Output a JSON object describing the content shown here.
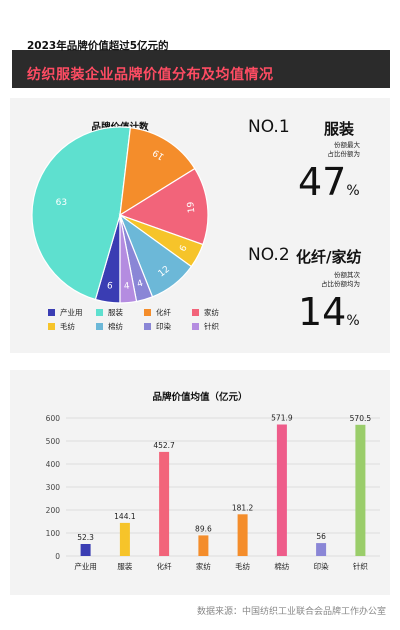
{
  "header": {
    "subtitle": "2023年品牌价值超过5亿元的",
    "title": "纺织服装企业品牌价值分布及均值情况"
  },
  "stats": [
    {
      "rank": "NO.1",
      "category": "服装",
      "note_line1": "份额最大",
      "note_line2": "占比份额为",
      "value": "47",
      "unit": "%"
    },
    {
      "rank": "NO.2",
      "category": "化纤/家纺",
      "note_line1": "份额其次",
      "note_line2": "占比份额均为",
      "value": "14",
      "unit": "%"
    }
  ],
  "source": "数据来源：中国纺织工业联合会品牌工作办公室",
  "colors": {
    "header_title": "#ff4c63",
    "header_bg": "#2b2b2b",
    "panel_bg": "#f3f3f3"
  },
  "chart_data": [
    {
      "type": "pie",
      "title": "品牌价值计数",
      "slices": [
        {
          "label": "产业用",
          "value": 6,
          "color": "#3a3db3"
        },
        {
          "label": "服装",
          "value": 63,
          "color": "#5ee0cf"
        },
        {
          "label": "化纤",
          "value": 19,
          "color": "#f48d2b"
        },
        {
          "label": "家纺",
          "value": 19,
          "color": "#f2647a"
        },
        {
          "label": "毛纺",
          "value": 6,
          "color": "#f6c42a"
        },
        {
          "label": "棉纺",
          "value": 12,
          "color": "#6cb8d8"
        },
        {
          "label": "印染",
          "value": 4,
          "color": "#8a86d6"
        },
        {
          "label": "针织",
          "value": 4,
          "color": "#b48ce0"
        }
      ],
      "legend": [
        "产业用",
        "服装",
        "化纤",
        "家纺",
        "毛纺",
        "棉纺",
        "印染",
        "针织"
      ],
      "legend_position": "bottom"
    },
    {
      "type": "bar",
      "title": "品牌价值均值（亿元）",
      "categories": [
        "产业用",
        "服装",
        "化纤",
        "家纺",
        "毛纺",
        "棉纺",
        "印染",
        "针织"
      ],
      "values": [
        52.3,
        144.1,
        452.7,
        89.6,
        181.2,
        571.9,
        56,
        570.5
      ],
      "value_labels": [
        "52.3",
        "144.1",
        "452.7",
        "89.6",
        "181.2",
        "571.9",
        "56",
        "570.5"
      ],
      "colors": [
        "#3a3db3",
        "#f6c42a",
        "#f2647a",
        "#f48d2b",
        "#f48d2b",
        "#ee5c8a",
        "#8a86d6",
        "#9acd6a"
      ],
      "ylim": [
        0,
        600
      ],
      "yticks": [
        "0",
        "100",
        "200",
        "300",
        "400",
        "500",
        "600"
      ],
      "grid": true
    }
  ]
}
